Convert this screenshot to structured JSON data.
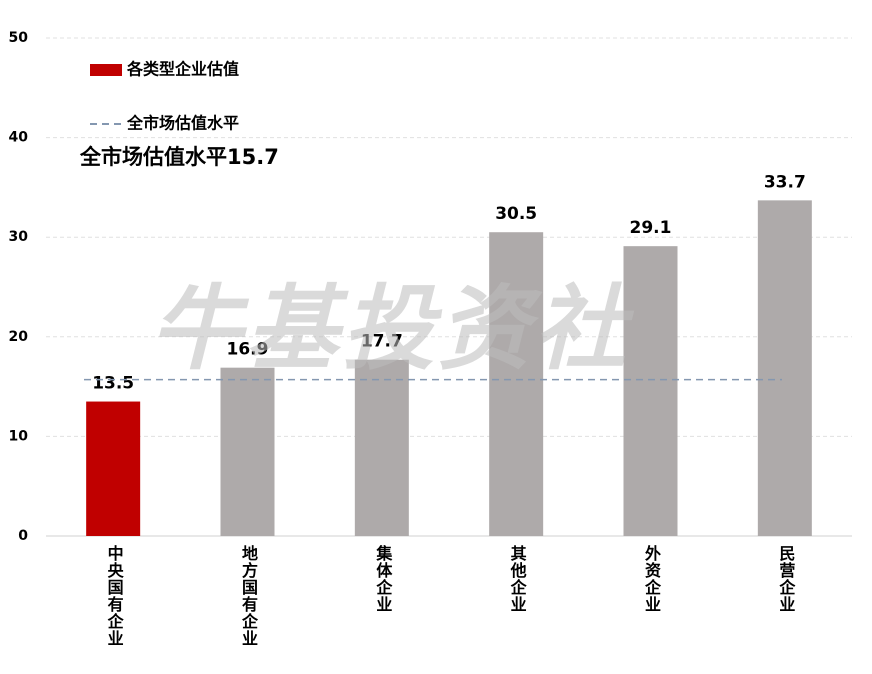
{
  "chart_data": {
    "type": "bar",
    "categories": [
      "中央国有企业",
      "地方国有企业",
      "集体企业",
      "其他企业",
      "外资企业",
      "民营企业"
    ],
    "series": [
      {
        "name": "各类型企业估值",
        "color": "#c00000",
        "values": [
          13.5,
          16.9,
          17.7,
          30.5,
          29.1,
          33.7
        ],
        "colors": [
          "#c00000",
          "#aeaaaa",
          "#aeaaaa",
          "#aeaaaa",
          "#aeaaaa",
          "#aeaaaa"
        ]
      }
    ],
    "reference_line": {
      "name": "全市场估值水平",
      "value": 15.7,
      "label": "全市场估值水平15.7",
      "color": "#8497b0"
    },
    "watermark": "牛基投资社",
    "ylim": [
      0,
      50
    ],
    "yticks": [
      0,
      10,
      20,
      30,
      40,
      50
    ],
    "grid": true
  }
}
